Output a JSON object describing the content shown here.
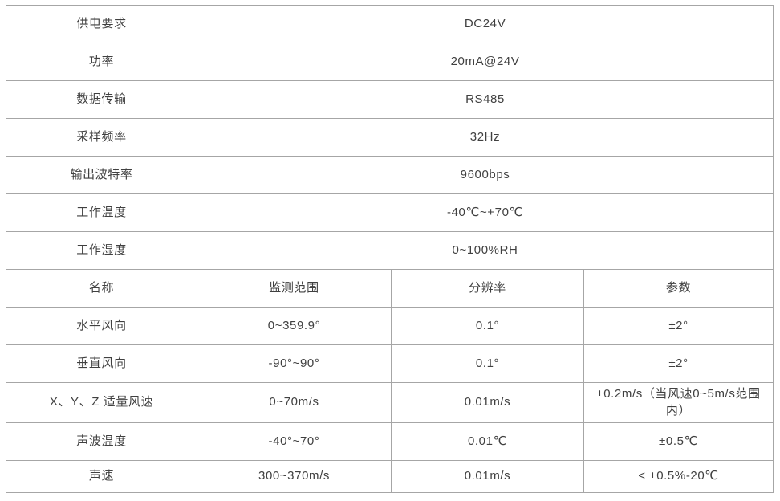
{
  "colors": {
    "background": "#ffffff",
    "border_inner": "#a6a6a6",
    "border_outer": "#8a8a8a",
    "text": "#404040"
  },
  "table": {
    "spec_rows": [
      {
        "label": "供电要求",
        "value": "DC24V"
      },
      {
        "label": "功率",
        "value": "20mA@24V"
      },
      {
        "label": "数据传输",
        "value": "RS485"
      },
      {
        "label": "采样频率",
        "value": "32Hz"
      },
      {
        "label": "输出波特率",
        "value": "9600bps"
      },
      {
        "label": "工作温度",
        "value": "-40℃~+70℃"
      },
      {
        "label": "工作湿度",
        "value": "0~100%RH"
      }
    ],
    "header": {
      "name": "名称",
      "range": "监测范围",
      "resolution": "分辨率",
      "param": "参数"
    },
    "param_rows": [
      {
        "name": "水平风向",
        "range": "0~359.9°",
        "resolution": "0.1°",
        "param": "±2°"
      },
      {
        "name": "垂直风向",
        "range": "-90°~90°",
        "resolution": "0.1°",
        "param": "±2°"
      },
      {
        "name": "X、Y、Z 适量风速",
        "range": "0~70m/s",
        "resolution": "0.01m/s",
        "param": "±0.2m/s（当风速0~5m/s范围内）"
      },
      {
        "name": "声波温度",
        "range": "-40°~70°",
        "resolution": "0.01℃",
        "param": "±0.5℃"
      },
      {
        "name": "声速",
        "range": "300~370m/s",
        "resolution": "0.01m/s",
        "param": "< ±0.5%-20℃"
      }
    ]
  }
}
